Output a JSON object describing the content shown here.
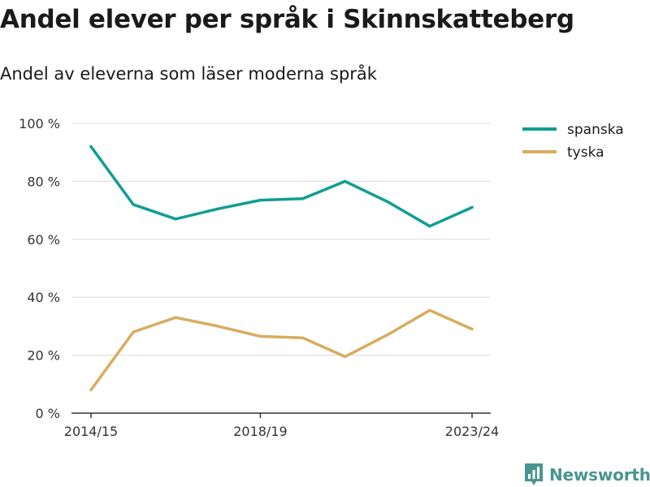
{
  "title": "Andel elever per språk i Skinnskatteberg",
  "subtitle": "Andel av eleverna som läser moderna språk",
  "brand": "Newsworthy",
  "chart_data": {
    "type": "line",
    "x": [
      "2014/15",
      "2015/16",
      "2016/17",
      "2017/18",
      "2018/19",
      "2019/20",
      "2020/21",
      "2021/22",
      "2022/23",
      "2023/24"
    ],
    "x_tick_labels": [
      "2014/15",
      "2018/19",
      "2023/24"
    ],
    "ylim": [
      0,
      100
    ],
    "y_ticks": [
      0,
      20,
      40,
      60,
      80,
      100
    ],
    "y_tick_labels": [
      "0 %",
      "20 %",
      "40 %",
      "60 %",
      "80 %",
      "100 %"
    ],
    "grid": true,
    "legend_position": "top-right",
    "series": [
      {
        "name": "spanska",
        "color": "#0f9e93",
        "values": [
          92,
          72,
          67,
          70.5,
          73.5,
          74,
          80,
          73,
          64.5,
          71
        ]
      },
      {
        "name": "tyska",
        "color": "#d8ad60",
        "values": [
          8,
          28,
          33,
          30,
          26.5,
          26,
          19.5,
          27,
          35.5,
          29
        ]
      }
    ]
  }
}
